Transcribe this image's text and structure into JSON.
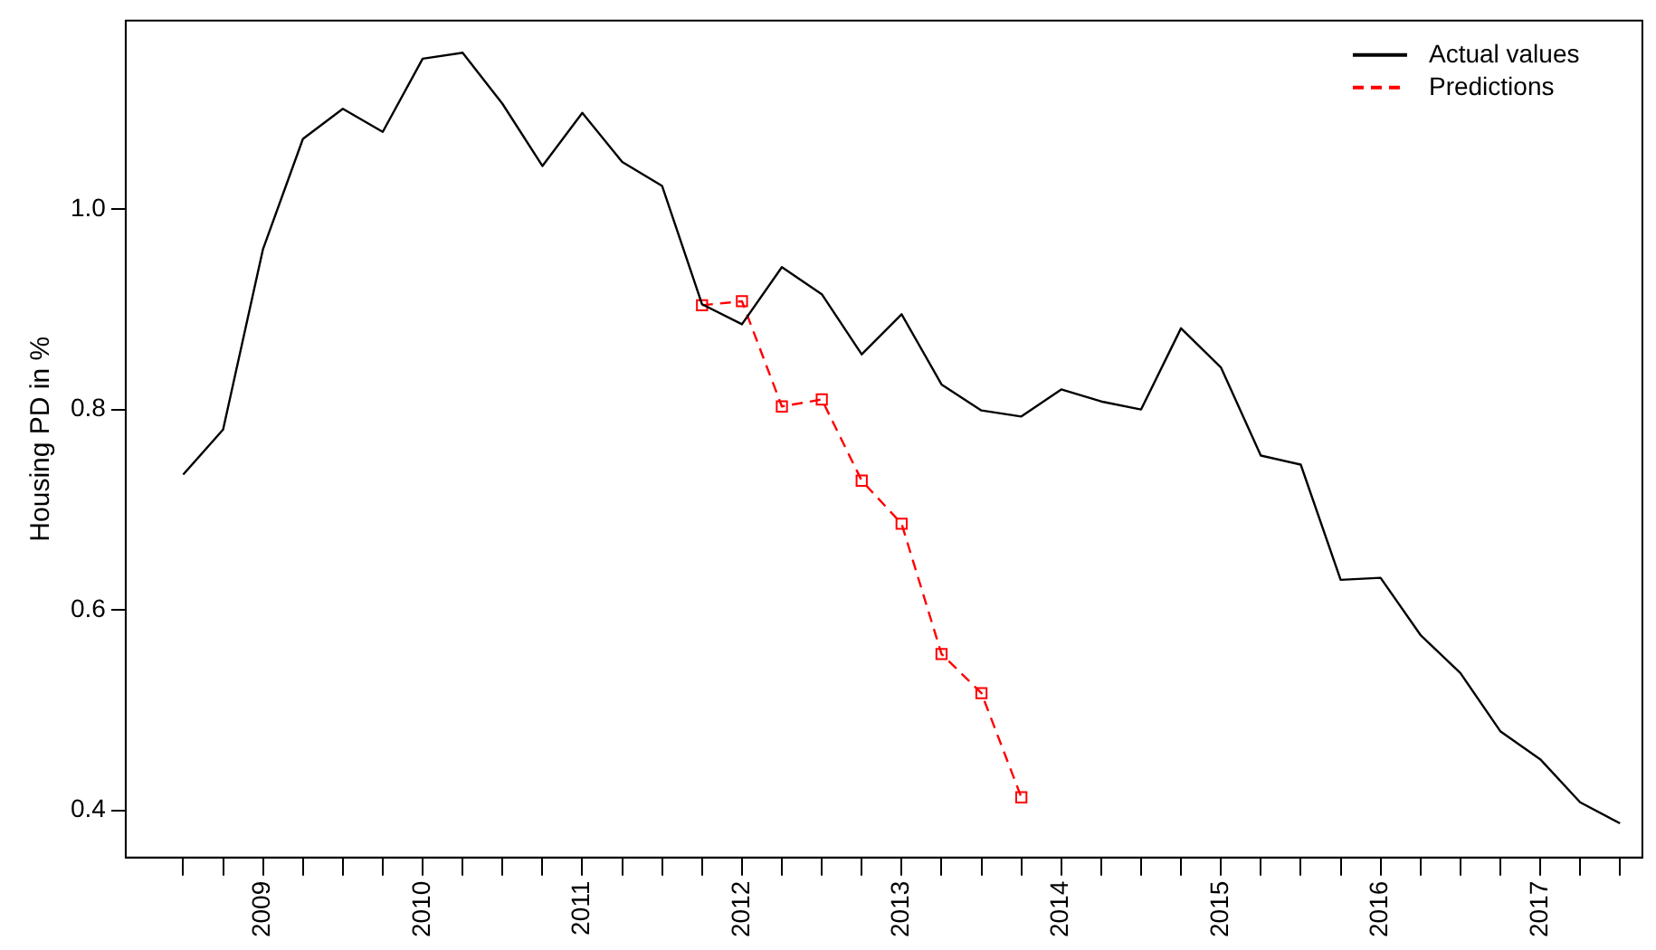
{
  "chart_data": {
    "type": "line",
    "ylabel": "Housing PD in %",
    "xlim": [
      2008.14,
      2017.64
    ],
    "ylim": [
      0.353,
      1.188
    ],
    "xticks": [
      {
        "value": 2008.5,
        "label": null
      },
      {
        "value": 2008.75,
        "label": null
      },
      2009,
      {
        "value": 2009.25,
        "label": null
      },
      {
        "value": 2009.5,
        "label": null
      },
      {
        "value": 2009.75,
        "label": null
      },
      2010,
      {
        "value": 2010.25,
        "label": null
      },
      {
        "value": 2010.5,
        "label": null
      },
      {
        "value": 2010.75,
        "label": null
      },
      2011,
      {
        "value": 2011.25,
        "label": null
      },
      {
        "value": 2011.5,
        "label": null
      },
      {
        "value": 2011.75,
        "label": null
      },
      2012,
      {
        "value": 2012.25,
        "label": null
      },
      {
        "value": 2012.5,
        "label": null
      },
      {
        "value": 2012.75,
        "label": null
      },
      2013,
      {
        "value": 2013.25,
        "label": null
      },
      {
        "value": 2013.5,
        "label": null
      },
      {
        "value": 2013.75,
        "label": null
      },
      2014,
      {
        "value": 2014.25,
        "label": null
      },
      {
        "value": 2014.5,
        "label": null
      },
      {
        "value": 2014.75,
        "label": null
      },
      2015,
      {
        "value": 2015.25,
        "label": null
      },
      {
        "value": 2015.5,
        "label": null
      },
      {
        "value": 2015.75,
        "label": null
      },
      2016,
      {
        "value": 2016.25,
        "label": null
      },
      {
        "value": 2016.5,
        "label": null
      },
      {
        "value": 2016.75,
        "label": null
      },
      2017,
      {
        "value": 2017.25,
        "label": null
      },
      {
        "value": 2017.5,
        "label": null
      }
    ],
    "yticks": [
      0.4,
      0.6,
      0.8,
      {
        "value": 1,
        "label": "1.0"
      }
    ],
    "grid": false,
    "legend": "top right",
    "series": [
      {
        "name": "Actual values",
        "color": "#000000",
        "marker": "none",
        "line_style": "solid",
        "x": [
          2008.5,
          2008.75,
          2009,
          2009.25,
          2009.5,
          2009.75,
          2010,
          2010.25,
          2010.5,
          2010.75,
          2011,
          2011.25,
          2011.5,
          2011.75,
          2012,
          2012.25,
          2012.5,
          2012.75,
          2013,
          2013.25,
          2013.5,
          2013.75,
          2014,
          2014.25,
          2014.5,
          2014.75,
          2015,
          2015.25,
          2015.5,
          2015.75,
          2016,
          2016.25,
          2016.5,
          2016.75,
          2017,
          2017.25,
          2017.5
        ],
        "values": [
          0.735,
          0.78,
          0.96,
          1.07,
          1.1,
          1.077,
          1.15,
          1.156,
          1.105,
          1.043,
          1.096,
          1.047,
          1.023,
          0.905,
          0.885,
          0.942,
          0.915,
          0.855,
          0.895,
          0.825,
          0.799,
          0.793,
          0.82,
          0.808,
          0.8,
          0.881,
          0.842,
          0.754,
          0.745,
          0.63,
          0.632,
          0.575,
          0.537,
          0.479,
          0.451,
          0.408,
          0.387
        ]
      },
      {
        "name": "Predictions",
        "color": "#ff0000",
        "marker": "square",
        "line_style": "dashed",
        "x": [
          2011.75,
          2012,
          2012.25,
          2012.5,
          2012.75,
          2013,
          2013.25,
          2013.5,
          2013.75
        ],
        "values": [
          0.904,
          0.908,
          0.803,
          0.81,
          0.729,
          0.686,
          0.556,
          0.517,
          0.413
        ]
      }
    ]
  }
}
